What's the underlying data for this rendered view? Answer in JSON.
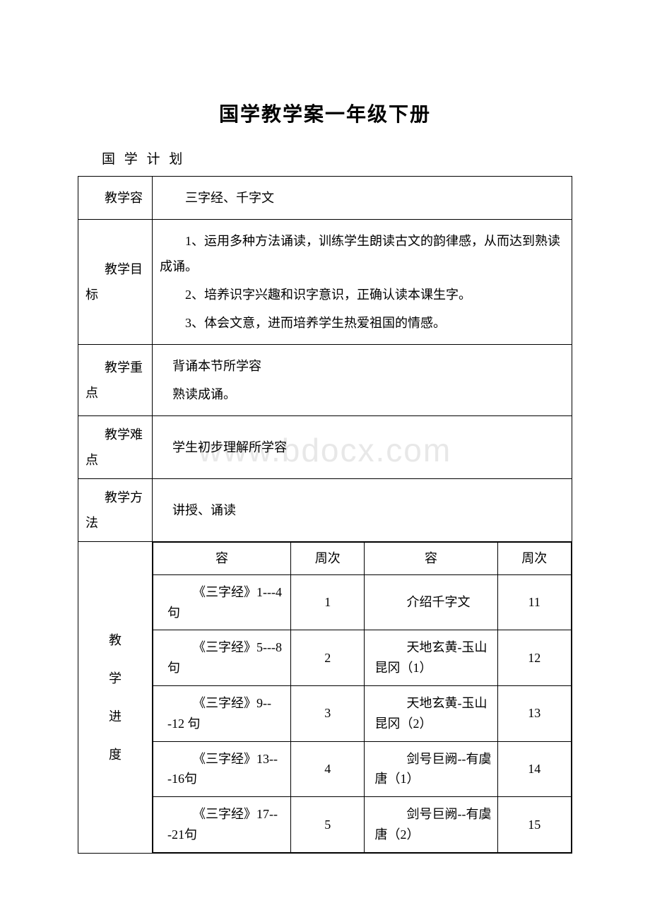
{
  "title": "国学教学案一年级下册",
  "subtitle": "国 学 计 划",
  "watermark": "www.bdocx.com",
  "rows": {
    "content": {
      "label": "教学容",
      "value": "三字经、千字文"
    },
    "goal": {
      "label": "教学目标",
      "lines": [
        "1、运用多种方法诵读，训练学生朗读古文的韵律感，从而达到熟读成诵。",
        "2、培养识字兴趣和识字意识，正确认读本课生字。",
        "3、体会文意，进而培养学生热爱祖国的情感。"
      ]
    },
    "keypoint": {
      "label": "教学重点",
      "lines": [
        "背诵本节所学容",
        "熟读成诵。"
      ]
    },
    "difficulty": {
      "label": "教学难点",
      "value": "学生初步理解所学容"
    },
    "method": {
      "label": "教学方法",
      "value": "讲授、诵读"
    },
    "schedule": {
      "label": "教\n学\n进\n度",
      "headers": [
        "容",
        "周次",
        "容",
        "周次"
      ],
      "table": [
        {
          "c1": "《三字经》1---4 句",
          "w1": "1",
          "c2": "介绍千字文",
          "w2": "11"
        },
        {
          "c1": "《三字经》5---8 句",
          "w1": "2",
          "c2": "天地玄黄-玉山昆冈（1）",
          "w2": "12"
        },
        {
          "c1": "《三字经》9---12 句",
          "w1": "3",
          "c2": "天地玄黄-玉山昆冈（2）",
          "w2": "13"
        },
        {
          "c1": "《三字经》13---16句",
          "w1": "4",
          "c2": "剑号巨阙--有虞唐（1）",
          "w2": "14"
        },
        {
          "c1": "《三字经》17---21句",
          "w1": "5",
          "c2": "剑号巨阙--有虞唐（2）",
          "w2": "15"
        }
      ]
    }
  },
  "colors": {
    "text": "#000000",
    "border": "#000000",
    "background": "#ffffff",
    "watermark": "#e8e8e8"
  },
  "typography": {
    "title_fontsize": 28,
    "body_fontsize": 18,
    "subtitle_fontsize": 19,
    "watermark_fontsize": 46,
    "font_family": "SimSun"
  }
}
